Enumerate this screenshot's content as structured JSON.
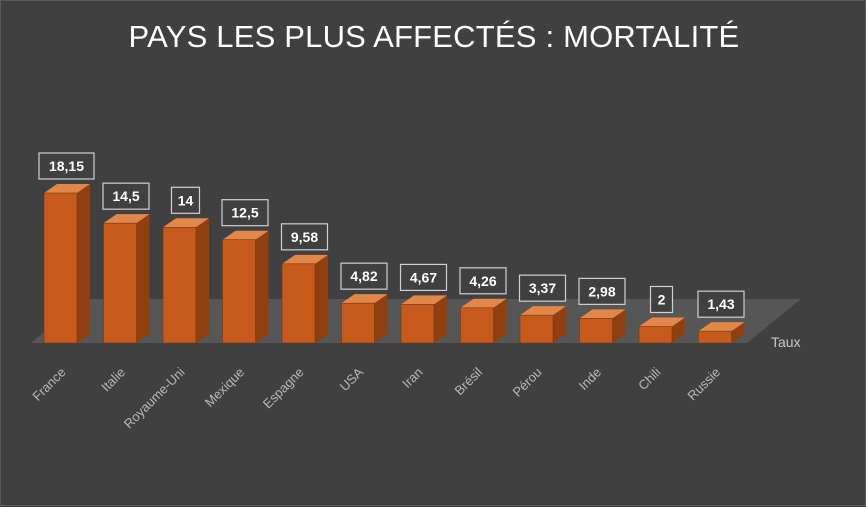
{
  "chart_data": {
    "type": "bar",
    "title": "PAYS LES PLUS AFFECTÉS : MORTALITÉ",
    "categories": [
      "France",
      "Italie",
      "Royaume-Uni",
      "Mexique",
      "Espagne",
      "USA",
      "Iran",
      "Brésil",
      "Pérou",
      "Inde",
      "Chili",
      "Russie"
    ],
    "series": [
      {
        "name": "Taux",
        "values": [
          18.15,
          14.5,
          14,
          12.5,
          9.58,
          4.82,
          4.67,
          4.26,
          3.37,
          2.98,
          2,
          1.43
        ],
        "labels": [
          "18,15",
          "14,5",
          "14",
          "12,5",
          "9,58",
          "4,82",
          "4,67",
          "4,26",
          "3,37",
          "2,98",
          "2",
          "1,43"
        ]
      }
    ],
    "ylim": [
      0,
      20
    ],
    "grid": false,
    "legend": "none",
    "colors": {
      "bar_front": "#c55a1c",
      "bar_side": "#8f3f10",
      "bar_top": "#e2874a",
      "floor": "#595959",
      "background": "#404040"
    }
  }
}
